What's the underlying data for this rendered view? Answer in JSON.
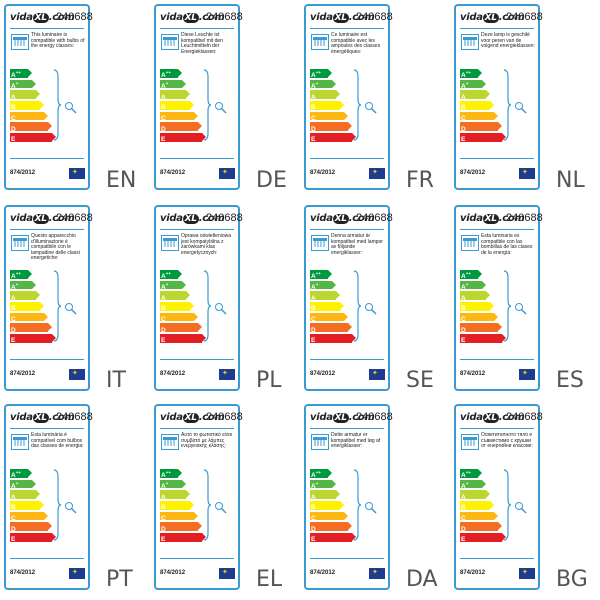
{
  "brand": {
    "pre": "vida",
    "xl": "XL",
    "post": ".com"
  },
  "model": "240688",
  "regulation": "874/2012",
  "classes": [
    {
      "letter": "A",
      "sup": "++",
      "color": "#009a3e"
    },
    {
      "letter": "A",
      "sup": "+",
      "color": "#54b644"
    },
    {
      "letter": "A",
      "sup": "",
      "color": "#bcd630"
    },
    {
      "letter": "B",
      "sup": "",
      "color": "#fff100"
    },
    {
      "letter": "C",
      "sup": "",
      "color": "#fcb712"
    },
    {
      "letter": "D",
      "sup": "",
      "color": "#f36e22"
    },
    {
      "letter": "E",
      "sup": "",
      "color": "#e31e24"
    }
  ],
  "labels": [
    {
      "lang": "EN",
      "text": "This luminaire is compatible with bulbs of the energy classes:"
    },
    {
      "lang": "DE",
      "text": "Diese Leuchte ist kompatibel mit den Leuchtmitteln der Energieklassen:"
    },
    {
      "lang": "FR",
      "text": "Ce luminaire est compatible avec les ampoules des classes énergétiques:"
    },
    {
      "lang": "NL",
      "text": "Deze lamp is geschikt voor peren van de volgend energieklassen:"
    },
    {
      "lang": "IT",
      "text": "Questo apparecchio d'illuminazione è compatibile con le lampadine delle classi energetiche:"
    },
    {
      "lang": "PL",
      "text": "Oprawa oświetleniowa jest kompatybilna z żarówkami klas energetycznych:"
    },
    {
      "lang": "SE",
      "text": "Denna armatur är kompatibel med lampor av följande energiklasser:"
    },
    {
      "lang": "ES",
      "text": "Esta luminaria es compatible con las bombillas de las clases de la energía:"
    },
    {
      "lang": "PT",
      "text": "Esta luminária é compatível com bulbos das classes de energia:"
    },
    {
      "lang": "EL",
      "text": "Αυτό το φωτιστικό είναι συμβατό με λάμπες ενεργειακής κλάσης:"
    },
    {
      "lang": "DA",
      "text": "Dette armatur er kompatibel med løg af energiklasser:"
    },
    {
      "lang": "BG",
      "text": "Осветителното тяло е съвместимо с крушки от енергийни класове:"
    }
  ]
}
